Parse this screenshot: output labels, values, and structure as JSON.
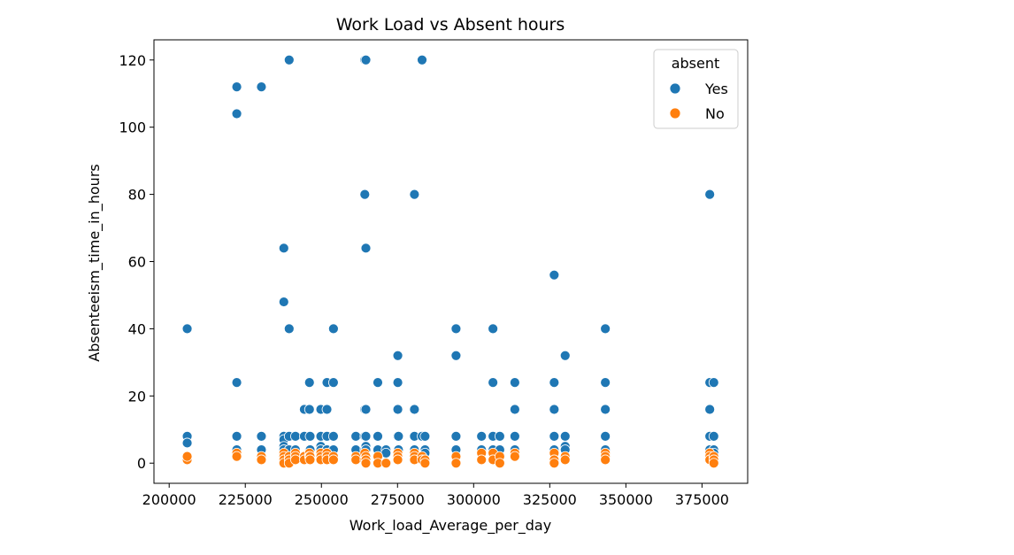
{
  "chart_data": {
    "type": "scatter",
    "title": "Work Load vs Absent hours",
    "xlabel": "Work_load_Average_per_day",
    "ylabel": "Absenteeism_time_in_hours",
    "xlim": [
      195000,
      390000
    ],
    "ylim": [
      -6,
      126
    ],
    "xticks": [
      200000,
      225000,
      250000,
      275000,
      300000,
      325000,
      350000,
      375000
    ],
    "yticks": [
      0,
      20,
      40,
      60,
      80,
      100,
      120
    ],
    "grid": false,
    "legend": {
      "title": "absent",
      "position": "top-right"
    },
    "series": [
      {
        "name": "Yes",
        "color": "#1f77b4",
        "x": [
          205917,
          205917,
          205917,
          222196,
          222196,
          222196,
          222196,
          222196,
          230290,
          230290,
          230290,
          237656,
          237656,
          237656,
          237656,
          237656,
          237656,
          239409,
          239409,
          239409,
          239409,
          239409,
          241476,
          241476,
          244387,
          244387,
          246074,
          246074,
          246074,
          246288,
          246288,
          246288,
          249797,
          249797,
          249797,
          249797,
          251818,
          251818,
          251818,
          251818,
          253957,
          253957,
          253957,
          253957,
          261306,
          261306,
          264249,
          264249,
          264249,
          264249,
          264249,
          264604,
          264604,
          264604,
          264604,
          264604,
          264604,
          268519,
          268519,
          268519,
          271219,
          271219,
          275089,
          275089,
          275089,
          275089,
          275312,
          275312,
          280549,
          280549,
          280549,
          280549,
          283058,
          283058,
          284031,
          284031,
          284031,
          294217,
          294217,
          294217,
          294217,
          302585,
          302585,
          306345,
          306345,
          306345,
          306345,
          308593,
          308593,
          313532,
          313532,
          313532,
          313532,
          326452,
          326452,
          326452,
          326452,
          326452,
          330061,
          330061,
          330061,
          330061,
          343253,
          343253,
          343253,
          343253,
          343253,
          377550,
          377550,
          377550,
          377550,
          377550,
          378884,
          378884,
          378884,
          378884
        ],
        "y": [
          40,
          8,
          6,
          112,
          104,
          24,
          8,
          4,
          112,
          8,
          4,
          64,
          48,
          8,
          7,
          5,
          4,
          120,
          40,
          8,
          4,
          2,
          8,
          4,
          16,
          8,
          24,
          16,
          4,
          8,
          4,
          2,
          16,
          8,
          5,
          4,
          24,
          16,
          8,
          4,
          40,
          24,
          8,
          4,
          8,
          4,
          120,
          80,
          16,
          8,
          4,
          120,
          64,
          16,
          8,
          5,
          4,
          24,
          8,
          4,
          4,
          3,
          32,
          24,
          16,
          8,
          8,
          4,
          80,
          16,
          8,
          4,
          120,
          8,
          8,
          4,
          3,
          40,
          32,
          8,
          4,
          8,
          4,
          40,
          24,
          8,
          4,
          8,
          4,
          24,
          16,
          8,
          4,
          56,
          24,
          16,
          8,
          4,
          32,
          8,
          5,
          4,
          40,
          24,
          16,
          8,
          4,
          80,
          24,
          16,
          8,
          4,
          24,
          8,
          4,
          3
        ]
      },
      {
        "name": "No",
        "color": "#ff7f0e",
        "x": [
          205917,
          205917,
          222196,
          222196,
          230290,
          230290,
          237656,
          237656,
          237656,
          237656,
          239409,
          239409,
          239409,
          241476,
          241476,
          241476,
          244387,
          244387,
          246074,
          246074,
          246288,
          246288,
          249797,
          249797,
          249797,
          251818,
          251818,
          251818,
          253957,
          253957,
          261306,
          261306,
          264249,
          264249,
          264604,
          264604,
          264604,
          268519,
          268519,
          271219,
          275089,
          275089,
          275089,
          280549,
          280549,
          280549,
          283058,
          283058,
          284031,
          284031,
          294217,
          294217,
          302585,
          302585,
          306345,
          306345,
          308593,
          308593,
          313532,
          313532,
          326452,
          326452,
          326452,
          330061,
          330061,
          343253,
          343253,
          343253,
          377550,
          377550,
          377550,
          378884,
          378884,
          378884
        ],
        "y": [
          1,
          2,
          3,
          2,
          2,
          1,
          3,
          2,
          1,
          0,
          2,
          1,
          0,
          3,
          2,
          1,
          2,
          1,
          3,
          2,
          2,
          1,
          3,
          2,
          1,
          3,
          2,
          1,
          2,
          1,
          2,
          1,
          3,
          1,
          2,
          1,
          0,
          2,
          0,
          0,
          3,
          2,
          1,
          3,
          2,
          1,
          2,
          1,
          1,
          0,
          2,
          0,
          3,
          1,
          3,
          1,
          2,
          0,
          3,
          2,
          3,
          1,
          0,
          2,
          1,
          3,
          2,
          1,
          3,
          2,
          1,
          2,
          1,
          0
        ]
      }
    ]
  }
}
